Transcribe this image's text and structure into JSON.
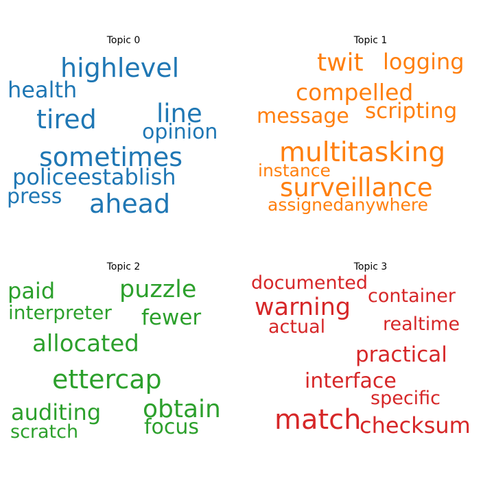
{
  "chart_data": {
    "type": "wordcloud",
    "panels": [
      {
        "title": "Topic 0",
        "color": "#1f77b4",
        "words": [
          "highlevel",
          "tired",
          "sometimes",
          "line",
          "health",
          "opinion",
          "policeestablish",
          "ahead",
          "press"
        ]
      },
      {
        "title": "Topic 1",
        "color": "#ff7f0e",
        "words": [
          "twit",
          "logging",
          "compelled",
          "message",
          "scripting",
          "multitasking",
          "instance",
          "surveillance",
          "assignedanywhere"
        ]
      },
      {
        "title": "Topic 2",
        "color": "#2ca02c",
        "words": [
          "paid",
          "puzzle",
          "interpreter",
          "fewer",
          "allocated",
          "ettercap",
          "auditing",
          "obtain",
          "scratch",
          "focus"
        ]
      },
      {
        "title": "Topic 3",
        "color": "#d62728",
        "words": [
          "documented",
          "warning",
          "container",
          "actual",
          "realtime",
          "practical",
          "interface",
          "specific",
          "match",
          "checksum"
        ]
      }
    ]
  }
}
